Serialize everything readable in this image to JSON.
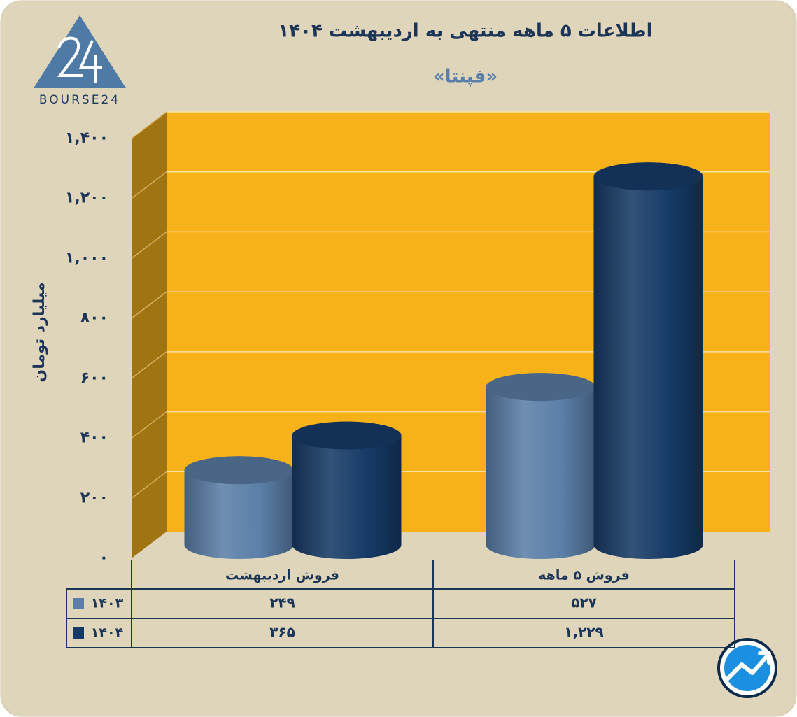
{
  "brand": "BOURSE24",
  "chart_data": {
    "type": "bar3d",
    "title": "اطلاعات ۵ ماهه منتهی به اردیبهشت ۱۴۰۴",
    "subtitle": "«فپنتا»",
    "y_label": "میلیارد تومان",
    "categories": [
      "فروش اردیبهشت",
      "فروش ۵ ماهه"
    ],
    "series": [
      {
        "name": "۱۴۰۳",
        "color": "#5b7fa8",
        "values": [
          249,
          527
        ],
        "value_labels": [
          "۲۴۹",
          "۵۲۷"
        ]
      },
      {
        "name": "۱۴۰۴",
        "color": "#163a66",
        "values": [
          365,
          1229
        ],
        "value_labels": [
          "۳۶۵",
          "۱,۲۲۹"
        ]
      }
    ],
    "ylim": [
      0,
      1400
    ],
    "yticks": [
      {
        "value": 0,
        "label": "۰"
      },
      {
        "value": 200,
        "label": "۲۰۰"
      },
      {
        "value": 400,
        "label": "۴۰۰"
      },
      {
        "value": 600,
        "label": "۶۰۰"
      },
      {
        "value": 800,
        "label": "۸۰۰"
      },
      {
        "value": 1000,
        "label": "۱,۰۰۰"
      },
      {
        "value": 1200,
        "label": "۱,۲۰۰"
      },
      {
        "value": 1400,
        "label": "۱,۴۰۰"
      }
    ],
    "grid": true,
    "wall_color": "#f8b219",
    "side_color": "#a07410"
  }
}
